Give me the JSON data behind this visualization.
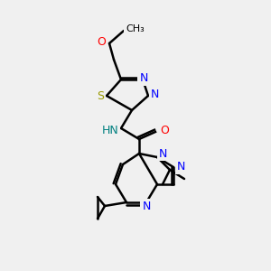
{
  "background_color": "#f0f0f0",
  "atom_colors": {
    "C": "#000000",
    "N": "#0000ff",
    "O": "#ff0000",
    "S": "#cccc00",
    "H": "#008080"
  },
  "title": "",
  "figsize": [
    3.0,
    3.0
  ],
  "dpi": 100
}
